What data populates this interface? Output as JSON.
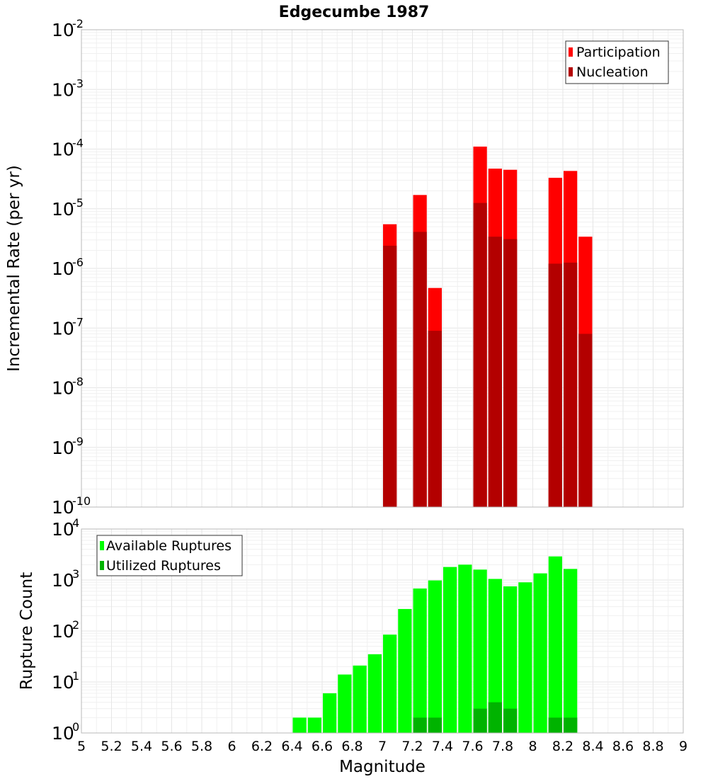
{
  "chart_data": [
    {
      "type": "bar",
      "scale": "log",
      "title": "Edgecumbe 1987",
      "xlabel": "",
      "ylabel": "Incremental Rate (per yr)",
      "xlim": [
        5,
        9
      ],
      "ylim_exponents": [
        -10,
        -2
      ],
      "bin_width": 0.1,
      "legend": {
        "placement": "top-right"
      },
      "series": [
        {
          "name": "Participation",
          "color": "#ff0000",
          "points": [
            {
              "x": 7.05,
              "y": 5.5e-06
            },
            {
              "x": 7.25,
              "y": 1.7e-05
            },
            {
              "x": 7.35,
              "y": 4.7e-07
            },
            {
              "x": 7.65,
              "y": 0.00011
            },
            {
              "x": 7.75,
              "y": 4.7e-05
            },
            {
              "x": 7.85,
              "y": 4.5e-05
            },
            {
              "x": 8.15,
              "y": 3.3e-05
            },
            {
              "x": 8.25,
              "y": 4.3e-05
            },
            {
              "x": 8.35,
              "y": 3.4e-06
            }
          ]
        },
        {
          "name": "Nucleation",
          "color": "#b30000",
          "points": [
            {
              "x": 7.05,
              "y": 2.4e-06
            },
            {
              "x": 7.25,
              "y": 4.1e-06
            },
            {
              "x": 7.35,
              "y": 9e-08
            },
            {
              "x": 7.65,
              "y": 1.25e-05
            },
            {
              "x": 7.75,
              "y": 3.4e-06
            },
            {
              "x": 7.85,
              "y": 3.1e-06
            },
            {
              "x": 8.15,
              "y": 1.2e-06
            },
            {
              "x": 8.25,
              "y": 1.25e-06
            },
            {
              "x": 8.35,
              "y": 8e-08
            }
          ]
        }
      ]
    },
    {
      "type": "bar",
      "scale": "log",
      "title": "",
      "xlabel": "Magnitude",
      "ylabel": "Rupture Count",
      "xlim": [
        5,
        9
      ],
      "ylim_exponents": [
        0,
        4
      ],
      "bin_width": 0.1,
      "legend": {
        "placement": "top-left"
      },
      "x_ticks": [
        "5",
        "5.2",
        "5.4",
        "5.6",
        "5.8",
        "6",
        "6.2",
        "6.4",
        "6.6",
        "6.8",
        "7",
        "7.2",
        "7.4",
        "7.6",
        "7.8",
        "8",
        "8.2",
        "8.4",
        "8.6",
        "8.8",
        "9"
      ],
      "series": [
        {
          "name": "Available Ruptures",
          "color": "#00ff00",
          "points": [
            {
              "x": 6.45,
              "y": 2
            },
            {
              "x": 6.55,
              "y": 2
            },
            {
              "x": 6.65,
              "y": 6
            },
            {
              "x": 6.75,
              "y": 14
            },
            {
              "x": 6.85,
              "y": 21
            },
            {
              "x": 6.95,
              "y": 35
            },
            {
              "x": 7.05,
              "y": 85
            },
            {
              "x": 7.15,
              "y": 270
            },
            {
              "x": 7.25,
              "y": 680
            },
            {
              "x": 7.35,
              "y": 980
            },
            {
              "x": 7.45,
              "y": 1800
            },
            {
              "x": 7.55,
              "y": 2000
            },
            {
              "x": 7.65,
              "y": 1600
            },
            {
              "x": 7.75,
              "y": 1050
            },
            {
              "x": 7.85,
              "y": 750
            },
            {
              "x": 7.95,
              "y": 900
            },
            {
              "x": 8.05,
              "y": 1350
            },
            {
              "x": 8.15,
              "y": 2900
            },
            {
              "x": 8.25,
              "y": 1650
            },
            {
              "x": 8.35,
              "y": 1
            }
          ]
        },
        {
          "name": "Utilized Ruptures",
          "color": "#00b300",
          "points": [
            {
              "x": 7.05,
              "y": 1
            },
            {
              "x": 7.25,
              "y": 2
            },
            {
              "x": 7.35,
              "y": 2
            },
            {
              "x": 7.65,
              "y": 3
            },
            {
              "x": 7.75,
              "y": 4
            },
            {
              "x": 7.85,
              "y": 3
            },
            {
              "x": 8.15,
              "y": 2
            },
            {
              "x": 8.25,
              "y": 2
            },
            {
              "x": 8.35,
              "y": 1
            }
          ]
        }
      ]
    }
  ]
}
